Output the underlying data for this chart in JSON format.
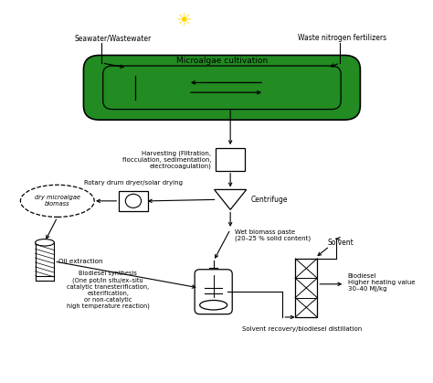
{
  "background_color": "#ffffff",
  "sun_color": "#FFD700",
  "pond_color": "#228B22",
  "pond_label": "Microalgae cultivation",
  "seawater_label": "Seawater/Wastewater",
  "waste_n_label": "Waste nitrogen fertilizers",
  "harvesting_label": "Harvesting (Filtration,\nflocculation, sedimentation,\nelectrocoagulation)",
  "centrifuge_label": "Centrifuge",
  "rotary_label": "Rotary drum dryer/solar drying",
  "dry_biomass_label": "dry microalgae\nbiomass",
  "wet_biomass_label": "Wet biomass paste\n(20–25 % solid content)",
  "oil_extraction_label": "Oil extraction",
  "biodiesel_synth_label": "Biodiesel synthesis\n(One pot/in situ/ex–situ\ncatalytic tranesterification,\nesterification,\nor non-catalytic\nhigh temperature reaction)",
  "solvent_label": "Solvent",
  "biodiesel_label": "Biodiesel\nHigher heating value\n30–40 MJ/kg",
  "solvent_recovery_label": "Solvent recovery/biodiesel distillation"
}
